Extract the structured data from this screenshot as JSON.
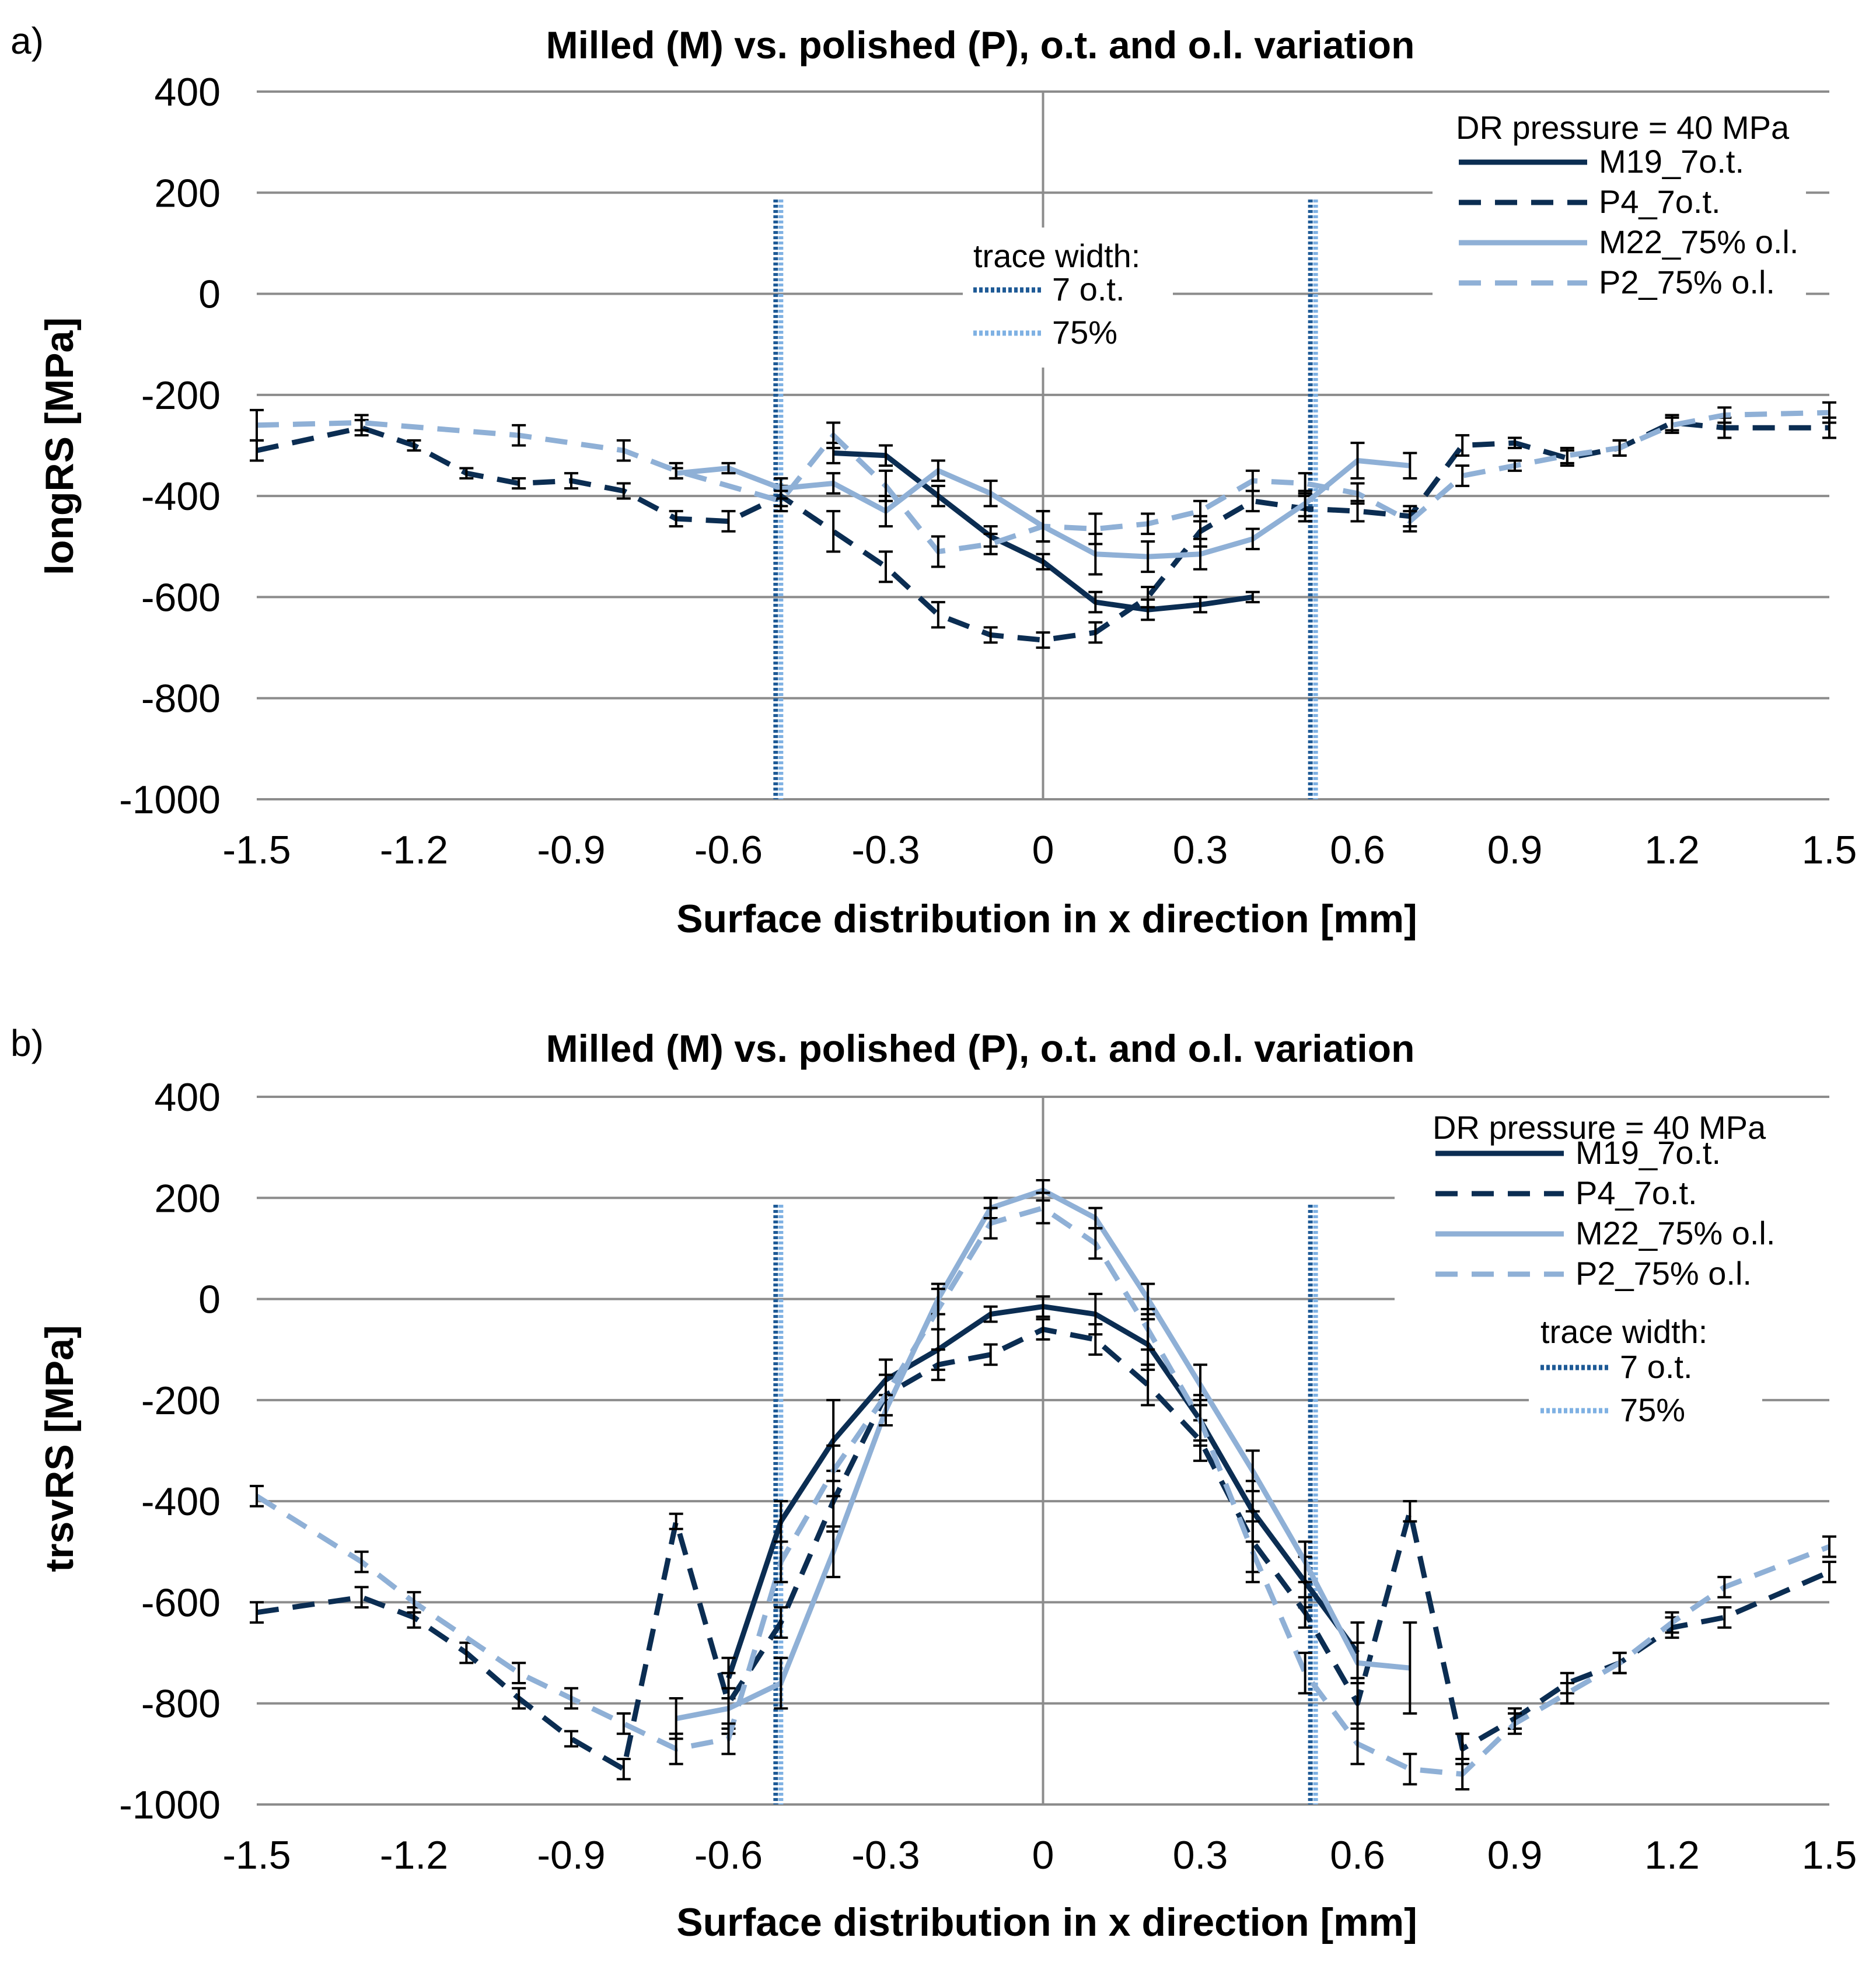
{
  "chart_data": [
    {
      "panel_label": "a)",
      "type": "line",
      "title": "Milled (M) vs. polished (P), o.t. and o.l. variation",
      "xlabel": "Surface distribution in x direction [mm]",
      "ylabel": "longRS [MPa]",
      "xlim": [
        -1.5,
        1.5
      ],
      "ylim": [
        -1000,
        400
      ],
      "xticks": [
        -1.5,
        -1.2,
        -0.9,
        -0.6,
        -0.3,
        0,
        0.3,
        0.6,
        0.9,
        1.2,
        1.5
      ],
      "xtick_labels": [
        "-1.5",
        "-1.2",
        "-0.9",
        "-0.6",
        "-0.3",
        "0",
        "0.3",
        "0.6",
        "0.9",
        "1.2",
        "1.5"
      ],
      "yticks": [
        400,
        200,
        0,
        -200,
        -400,
        -600,
        -800,
        -1000
      ],
      "ytick_labels": [
        "400",
        "200",
        "0",
        "-200",
        "-400",
        "-600",
        "-800",
        "-1000"
      ],
      "legend_title": "DR pressure  = 40 MPa",
      "legend_position": "top-right",
      "trace_legend_title": "trace width:",
      "trace_legend_position": "center-top",
      "series": [
        {
          "name": "M19_7o.t.",
          "color": "#0b2d52",
          "style": "solid",
          "x": [
            -0.4,
            -0.3,
            -0.2,
            -0.1,
            0,
            0.1,
            0.2,
            0.3,
            0.4
          ],
          "y": [
            -315,
            -320,
            -400,
            -480,
            -530,
            -610,
            -625,
            -615,
            -600
          ],
          "err": [
            20,
            20,
            20,
            20,
            15,
            20,
            20,
            15,
            10
          ]
        },
        {
          "name": "P4_7o.t.",
          "color": "#0b2d52",
          "style": "dashed",
          "x": [
            -1.5,
            -1.3,
            -1.2,
            -1.1,
            -1.0,
            -0.9,
            -0.8,
            -0.7,
            -0.6,
            -0.5,
            -0.4,
            -0.3,
            -0.2,
            -0.1,
            0,
            0.1,
            0.2,
            0.3,
            0.4,
            0.5,
            0.6,
            0.7,
            0.8,
            0.9,
            1.0,
            1.1,
            1.2,
            1.3,
            1.5
          ],
          "y": [
            -310,
            -265,
            -300,
            -355,
            -375,
            -370,
            -390,
            -445,
            -450,
            -400,
            -470,
            -540,
            -635,
            -675,
            -685,
            -670,
            -600,
            -470,
            -410,
            -425,
            -430,
            -440,
            -300,
            -295,
            -325,
            -305,
            -255,
            -265,
            -265
          ],
          "err": [
            20,
            15,
            10,
            10,
            10,
            15,
            15,
            15,
            20,
            20,
            40,
            30,
            25,
            15,
            15,
            20,
            20,
            30,
            20,
            25,
            20,
            20,
            20,
            10,
            15,
            15,
            15,
            20,
            20
          ]
        },
        {
          "name": "M22_75% o.l.",
          "color": "#8fb0d6",
          "style": "solid",
          "x": [
            -0.7,
            -0.6,
            -0.5,
            -0.4,
            -0.3,
            -0.2,
            -0.1,
            0,
            0.1,
            0.2,
            0.3,
            0.4,
            0.5,
            0.6,
            0.7
          ],
          "y": [
            -355,
            -345,
            -385,
            -375,
            -430,
            -350,
            -395,
            -460,
            -515,
            -520,
            -515,
            -485,
            -415,
            -330,
            -340
          ],
          "err": [
            10,
            10,
            20,
            20,
            30,
            20,
            25,
            30,
            40,
            30,
            30,
            20,
            25,
            35,
            25
          ]
        },
        {
          "name": "P2_75% o.l.",
          "color": "#8fb0d6",
          "style": "dashed",
          "x": [
            -1.5,
            -1.3,
            -1.0,
            -0.8,
            -0.7,
            -0.5,
            -0.4,
            -0.3,
            -0.2,
            -0.1,
            0,
            0.1,
            0.2,
            0.3,
            0.4,
            0.5,
            0.6,
            0.7,
            0.8,
            0.9,
            1.0,
            1.1,
            1.2,
            1.3,
            1.5
          ],
          "y": [
            -260,
            -255,
            -280,
            -310,
            -350,
            -410,
            -280,
            -380,
            -510,
            -495,
            -460,
            -465,
            -455,
            -430,
            -370,
            -375,
            -395,
            -450,
            -360,
            -340,
            -320,
            -305,
            -260,
            -240,
            -235
          ],
          "err": [
            30,
            15,
            20,
            20,
            15,
            20,
            25,
            30,
            30,
            20,
            30,
            30,
            20,
            20,
            20,
            20,
            20,
            20,
            20,
            10,
            15,
            15,
            15,
            15,
            20
          ]
        }
      ],
      "trace_lines": [
        {
          "name": "7 o.t.",
          "color": "#1e5a96",
          "x": [
            -0.51,
            0.51
          ]
        },
        {
          "name": "75%",
          "color": "#7fb1e3",
          "x": [
            -0.5,
            0.52
          ]
        }
      ]
    },
    {
      "panel_label": "b)",
      "type": "line",
      "title": "Milled (M) vs. polished (P), o.t. and o.l. variation",
      "xlabel": "Surface distribution in x direction [mm]",
      "ylabel": "trsvRS [MPa]",
      "xlim": [
        -1.5,
        1.5
      ],
      "ylim": [
        -1000,
        400
      ],
      "xticks": [
        -1.5,
        -1.2,
        -0.9,
        -0.6,
        -0.3,
        0,
        0.3,
        0.6,
        0.9,
        1.2,
        1.5
      ],
      "xtick_labels": [
        "-1.5",
        "-1.2",
        "-0.9",
        "-0.6",
        "-0.3",
        "0",
        "0.3",
        "0.6",
        "0.9",
        "1.2",
        "1.5"
      ],
      "yticks": [
        400,
        200,
        0,
        -200,
        -400,
        -600,
        -800,
        -1000
      ],
      "ytick_labels": [
        "400",
        "200",
        "0",
        "-200",
        "-400",
        "-600",
        "-800",
        "-1000"
      ],
      "legend_title": "DR pressure  = 40 MPa",
      "legend_position": "top-right",
      "trace_legend_title": "trace width:",
      "trace_legend_position": "right",
      "series": [
        {
          "name": "M19_7o.t.",
          "color": "#0b2d52",
          "style": "solid",
          "x": [
            -0.6,
            -0.5,
            -0.4,
            -0.3,
            -0.2,
            -0.1,
            0,
            0.1,
            0.2,
            0.3,
            0.4,
            0.5,
            0.6
          ],
          "y": [
            -750,
            -440,
            -280,
            -160,
            -100,
            -30,
            -15,
            -30,
            -90,
            -240,
            -420,
            -560,
            -700
          ],
          "err": [
            40,
            40,
            80,
            40,
            40,
            15,
            20,
            40,
            50,
            50,
            60,
            50,
            60
          ]
        },
        {
          "name": "P4_7o.t.",
          "color": "#0b2d52",
          "style": "dashed",
          "x": [
            -1.5,
            -1.3,
            -1.2,
            -1.1,
            -1.0,
            -0.9,
            -0.8,
            -0.7,
            -0.6,
            -0.5,
            -0.4,
            -0.3,
            -0.2,
            -0.1,
            0,
            0.1,
            0.2,
            0.3,
            0.4,
            0.5,
            0.6,
            0.7,
            0.8,
            0.9,
            1.0,
            1.1,
            1.2,
            1.3,
            1.5
          ],
          "y": [
            -620,
            -590,
            -630,
            -700,
            -790,
            -870,
            -930,
            -440,
            -800,
            -640,
            -400,
            -190,
            -130,
            -110,
            -60,
            -80,
            -170,
            -280,
            -480,
            -620,
            -800,
            -420,
            -890,
            -830,
            -760,
            -720,
            -650,
            -630,
            -540
          ],
          "err": [
            20,
            20,
            20,
            20,
            20,
            15,
            20,
            15,
            60,
            30,
            60,
            40,
            30,
            20,
            20,
            30,
            40,
            40,
            60,
            30,
            50,
            20,
            30,
            20,
            20,
            20,
            20,
            20,
            20
          ]
        },
        {
          "name": "M22_75% o.l.",
          "color": "#8fb0d6",
          "style": "solid",
          "x": [
            -0.7,
            -0.6,
            -0.5,
            -0.4,
            -0.3,
            -0.2,
            -0.1,
            0,
            0.1,
            0.2,
            0.3,
            0.4,
            0.5,
            0.6,
            0.7
          ],
          "y": [
            -830,
            -810,
            -760,
            -500,
            -220,
            0,
            180,
            215,
            160,
            0,
            -170,
            -340,
            -520,
            -720,
            -730
          ],
          "err": [
            40,
            40,
            50,
            50,
            30,
            30,
            20,
            20,
            20,
            30,
            40,
            40,
            40,
            40,
            90
          ]
        },
        {
          "name": "P2_75% o.l.",
          "color": "#8fb0d6",
          "style": "dashed",
          "x": [
            -1.5,
            -1.3,
            -1.2,
            -1.0,
            -0.9,
            -0.8,
            -0.7,
            -0.6,
            -0.5,
            -0.4,
            -0.3,
            -0.2,
            -0.1,
            0,
            0.1,
            0.2,
            0.3,
            0.4,
            0.5,
            0.6,
            0.7,
            0.8,
            0.9,
            1.0,
            1.1,
            1.2,
            1.3,
            1.5
          ],
          "y": [
            -390,
            -520,
            -600,
            -740,
            -790,
            -840,
            -890,
            -870,
            -520,
            -340,
            -190,
            -20,
            150,
            180,
            110,
            -60,
            -240,
            -500,
            -740,
            -880,
            -930,
            -940,
            -840,
            -780,
            -720,
            -640,
            -570,
            -490
          ],
          "err": [
            20,
            20,
            20,
            20,
            20,
            20,
            30,
            30,
            40,
            50,
            40,
            40,
            30,
            30,
            30,
            40,
            40,
            60,
            40,
            40,
            30,
            30,
            20,
            20,
            20,
            20,
            20,
            20
          ]
        }
      ],
      "trace_lines": [
        {
          "name": "7 o.t.",
          "color": "#1e5a96",
          "x": [
            -0.51,
            0.51
          ]
        },
        {
          "name": "75%",
          "color": "#7fb1e3",
          "x": [
            -0.5,
            0.52
          ]
        }
      ]
    }
  ]
}
